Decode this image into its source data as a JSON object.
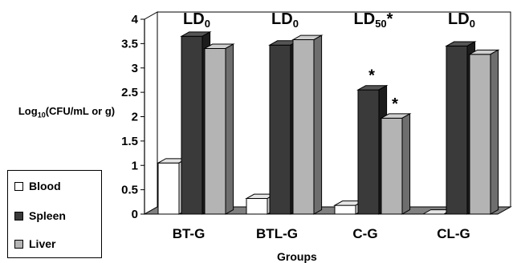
{
  "chart_data": {
    "type": "bar",
    "title": "",
    "xlabel": "Groups",
    "ylabel": {
      "base": "Log",
      "sub": "10",
      "rest": "(CFU/mL or g)"
    },
    "ylim": [
      0,
      4
    ],
    "yticks": [
      "0",
      "0.5",
      "1",
      "1.5",
      "2",
      "2.5",
      "3",
      "3.5",
      "4"
    ],
    "categories": [
      "BT-G",
      "BTL-G",
      "C-G",
      "CL-G"
    ],
    "series": [
      {
        "name": "Blood",
        "values": [
          1.05,
          0.32,
          0.18,
          0.0
        ]
      },
      {
        "name": "Spleen",
        "values": [
          3.65,
          3.47,
          2.55,
          3.45
        ]
      },
      {
        "name": "Liver",
        "values": [
          3.4,
          3.58,
          1.97,
          3.28
        ]
      }
    ],
    "colors": {
      "Blood": "#ffffff",
      "Spleen": "#3a3a3a",
      "Liver": "#b4b4b4"
    },
    "legend_position": "bottom-left",
    "annotations": [
      {
        "category": "BT-G",
        "main": "LD",
        "sub": "0",
        "suffix": ""
      },
      {
        "category": "BTL-G",
        "main": "LD",
        "sub": "0",
        "suffix": ""
      },
      {
        "category": "C-G",
        "main": "LD",
        "sub": "50",
        "suffix": "*"
      },
      {
        "category": "CL-G",
        "main": "LD",
        "sub": "0",
        "suffix": ""
      }
    ],
    "bar_markers": [
      {
        "category": "C-G",
        "series": "Spleen",
        "text": "*"
      },
      {
        "category": "C-G",
        "series": "Liver",
        "text": "*"
      }
    ],
    "grid": false,
    "style": "3d"
  }
}
